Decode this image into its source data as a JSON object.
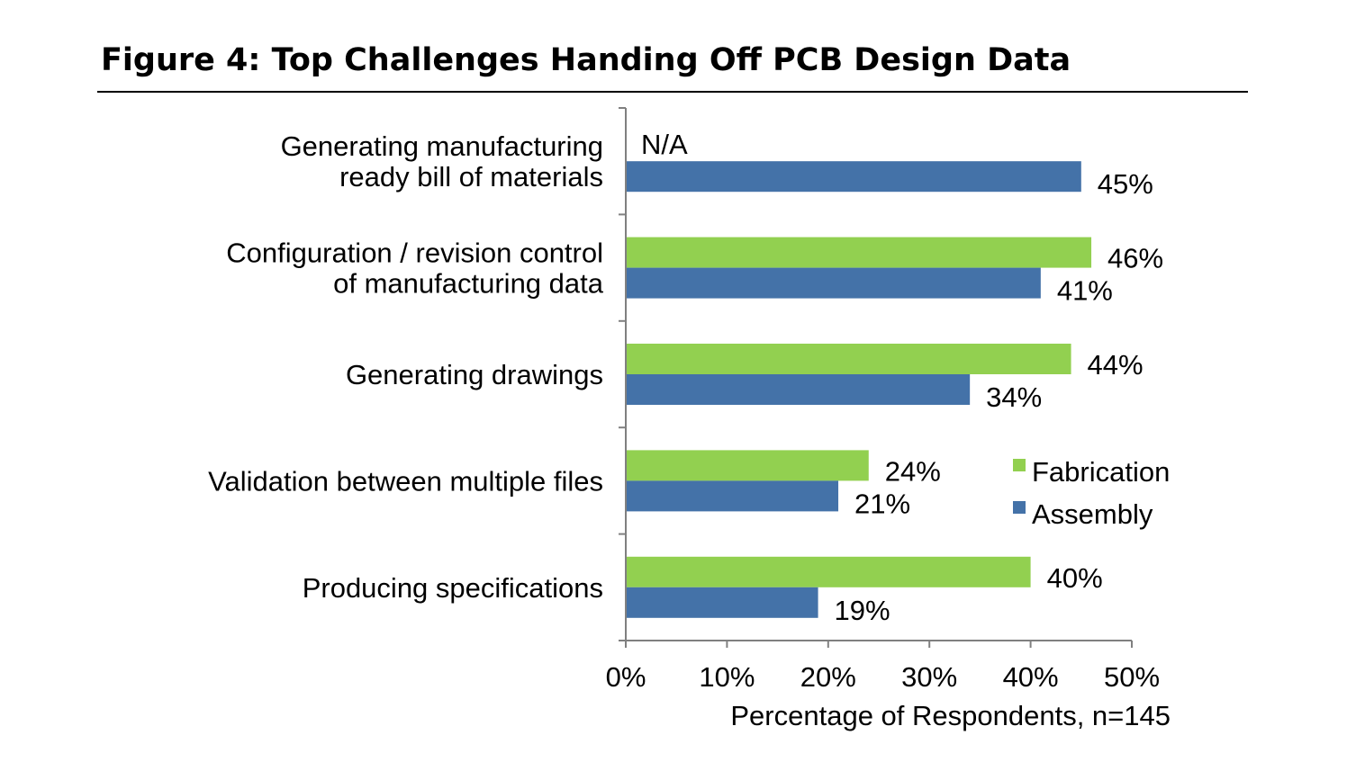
{
  "colors": {
    "fabrication": "#92d050",
    "assembly": "#4472a8",
    "axis": "#808080",
    "rule": "#000000"
  },
  "chart_data": {
    "type": "bar",
    "orientation": "horizontal",
    "title": "Figure 4: Top Challenges Handing Off PCB Design Data",
    "xlabel": "Percentage of Respondents, n=145",
    "ylabel": "",
    "xlim": [
      0,
      50
    ],
    "x_ticks": [
      "0%",
      "10%",
      "20%",
      "30%",
      "40%",
      "50%"
    ],
    "grid": false,
    "legend_position": "right",
    "categories": [
      [
        "Generating manufacturing",
        "ready bill of materials"
      ],
      [
        "Configuration / revision control",
        "of manufacturing data"
      ],
      [
        "Generating drawings"
      ],
      [
        "Validation between multiple files"
      ],
      [
        "Producing specifications"
      ]
    ],
    "series": [
      {
        "name": "Fabrication",
        "values": [
          null,
          46,
          44,
          24,
          40
        ],
        "labels": [
          "N/A",
          "46%",
          "44%",
          "24%",
          "40%"
        ]
      },
      {
        "name": "Assembly",
        "values": [
          45,
          41,
          34,
          21,
          19
        ],
        "labels": [
          "45%",
          "41%",
          "34%",
          "21%",
          "19%"
        ]
      }
    ]
  }
}
